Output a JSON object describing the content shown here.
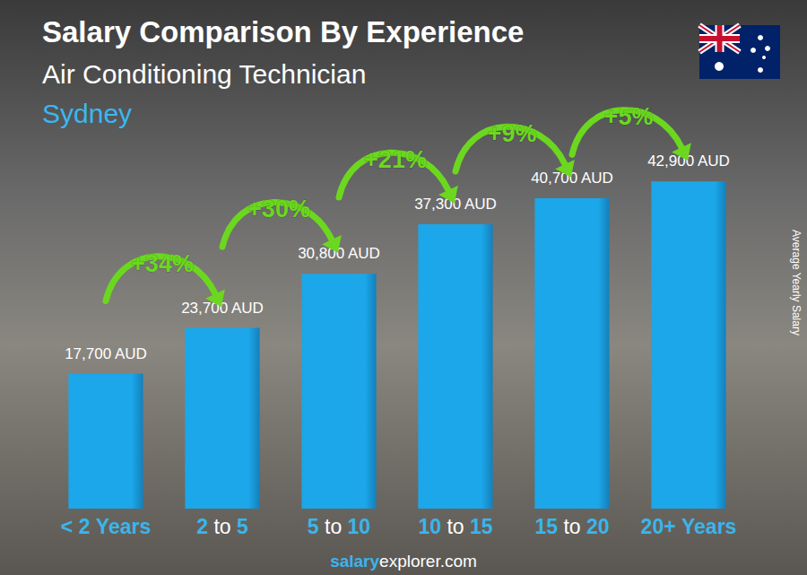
{
  "chart_data": {
    "type": "bar",
    "title": "Salary Comparison By Experience",
    "subtitle": "Air Conditioning Technician",
    "location": "Sydney",
    "y_label": "Average Yearly Salary",
    "source": [
      "salary",
      "explorer.com"
    ],
    "categories": [
      "< 2 Years",
      "2 to 5",
      "5 to 10",
      "10 to 15",
      "15 to 20",
      "20+ Years"
    ],
    "values": [
      17700,
      23700,
      30800,
      37300,
      40700,
      42900
    ],
    "value_labels": [
      "17,700 AUD",
      "23,700 AUD",
      "30,800 AUD",
      "37,300 AUD",
      "40,700 AUD",
      "42,900 AUD"
    ],
    "data_labels": true,
    "annotations": [
      "+34%",
      "+30%",
      "+21%",
      "+9%",
      "+5%"
    ],
    "color": "#1ba7e9",
    "ylim": [
      0,
      50000
    ],
    "tick_labels": "x",
    "grid": false
  }
}
